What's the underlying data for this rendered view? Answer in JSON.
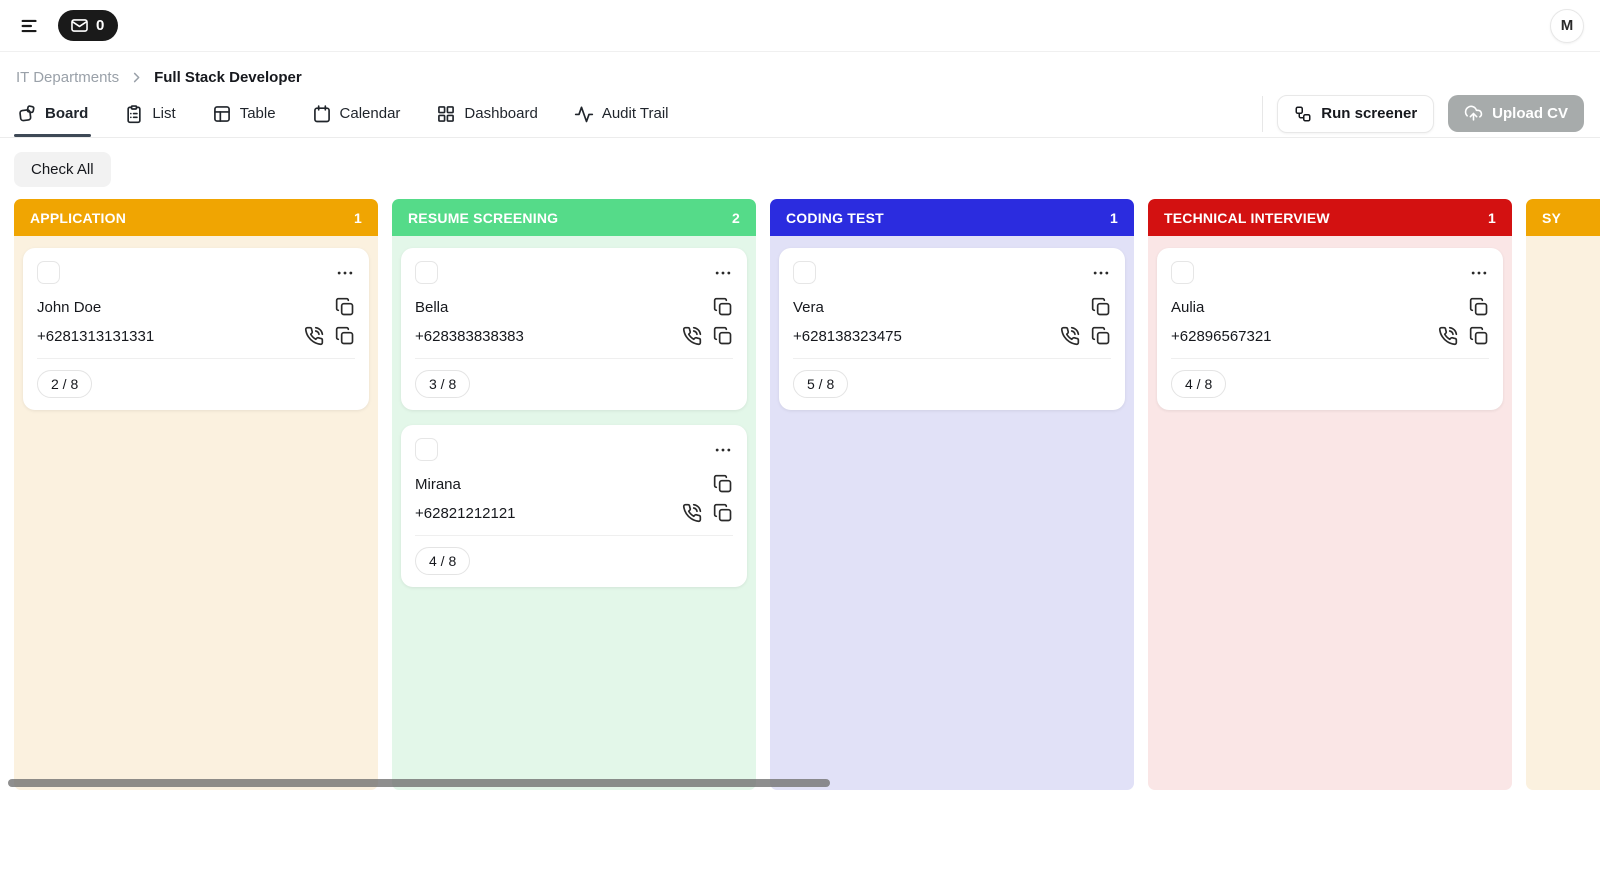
{
  "topbar": {
    "mail_count": "0",
    "avatar_initial": "M"
  },
  "breadcrumb": {
    "parent": "IT Departments",
    "current": "Full Stack Developer"
  },
  "tabs": [
    {
      "label": "Board",
      "icon": "board-icon",
      "active": true
    },
    {
      "label": "List",
      "icon": "list-icon",
      "active": false
    },
    {
      "label": "Table",
      "icon": "table-icon",
      "active": false
    },
    {
      "label": "Calendar",
      "icon": "calendar-icon",
      "active": false
    },
    {
      "label": "Dashboard",
      "icon": "dashboard-icon",
      "active": false
    },
    {
      "label": "Audit Trail",
      "icon": "activity-icon",
      "active": false
    }
  ],
  "actions": {
    "run_screener": "Run screener",
    "upload_cv": "Upload CV",
    "upload_cv_disabled": true
  },
  "check_all_label": "Check All",
  "board": {
    "columns": [
      {
        "title": "APPLICATION",
        "count": "1",
        "header_color": "#F0A502",
        "body_color": "#FBF1DF",
        "cards": [
          {
            "name": "John Doe",
            "phone": "+6281313131331",
            "badge": "2 / 8"
          }
        ]
      },
      {
        "title": "RESUME SCREENING",
        "count": "2",
        "header_color": "#55DB89",
        "body_color": "#E3F7E9",
        "cards": [
          {
            "name": "Bella",
            "phone": "+628383838383",
            "badge": "3 / 8"
          },
          {
            "name": "Mirana",
            "phone": "+62821212121",
            "badge": "4 / 8"
          }
        ]
      },
      {
        "title": "CODING TEST",
        "count": "1",
        "header_color": "#2B2CDF",
        "body_color": "#E1E1F7",
        "cards": [
          {
            "name": "Vera",
            "phone": "+628138323475",
            "badge": "5 / 8"
          }
        ]
      },
      {
        "title": "TECHNICAL INTERVIEW",
        "count": "1",
        "header_color": "#D31111",
        "body_color": "#FAE6E6",
        "cards": [
          {
            "name": "Aulia",
            "phone": "+62896567321",
            "badge": "4 / 8"
          }
        ]
      },
      {
        "title": "SY",
        "count": "",
        "header_color": "#F0A502",
        "body_color": "#FBF1DF",
        "cards": []
      }
    ]
  }
}
